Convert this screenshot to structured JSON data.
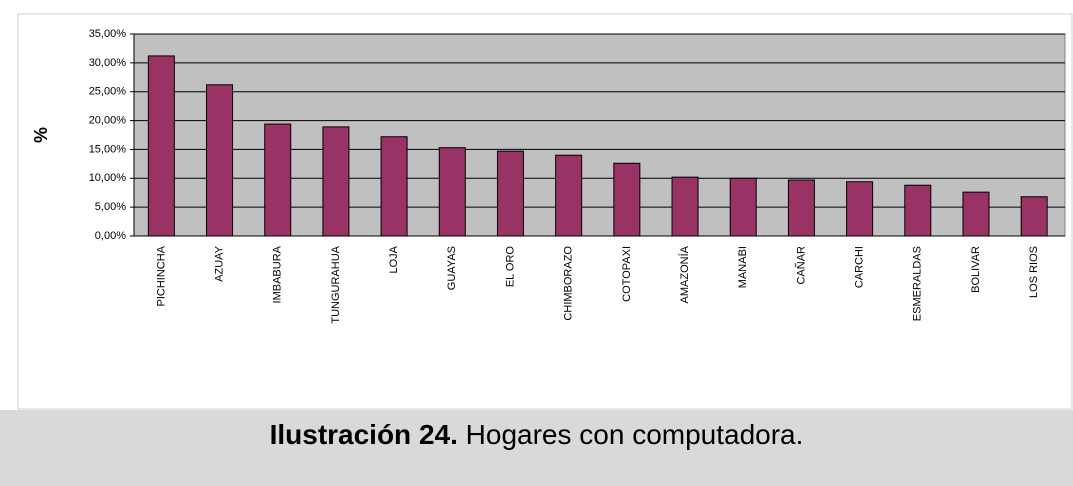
{
  "chart_data": {
    "type": "bar",
    "y_label": "%",
    "categories": [
      "PICHINCHA",
      "AZUAY",
      "IMBABURA",
      "TUNGURAHUA",
      "LOJA",
      "GUAYAS",
      "EL ORO",
      "CHIMBORAZO",
      "COTOPAXI",
      "AMAZONÍA",
      "MANABI",
      "CAÑAR",
      "CARCHI",
      "ESMERALDAS",
      "BOLIVAR",
      "LOS RIOS"
    ],
    "values": [
      31.2,
      26.2,
      19.4,
      18.9,
      17.2,
      15.3,
      14.7,
      14.0,
      12.6,
      10.2,
      10.0,
      9.7,
      9.4,
      8.8,
      7.6,
      6.8
    ],
    "color": "#993366",
    "plot_background": "#c0c0c0",
    "ylim": [
      0,
      35
    ],
    "yticks": [
      {
        "value": 0,
        "label": "0,00%"
      },
      {
        "value": 5,
        "label": "5,00%"
      },
      {
        "value": 10,
        "label": "10,00%"
      },
      {
        "value": 15,
        "label": "15,00%"
      },
      {
        "value": 20,
        "label": "20,00%"
      },
      {
        "value": 25,
        "label": "25,00%"
      },
      {
        "value": 30,
        "label": "30,00%"
      },
      {
        "value": 35,
        "label": "35,00%"
      }
    ],
    "grid": true
  },
  "caption": {
    "label": "Ilustración 24.",
    "text": "Hogares con computadora."
  }
}
